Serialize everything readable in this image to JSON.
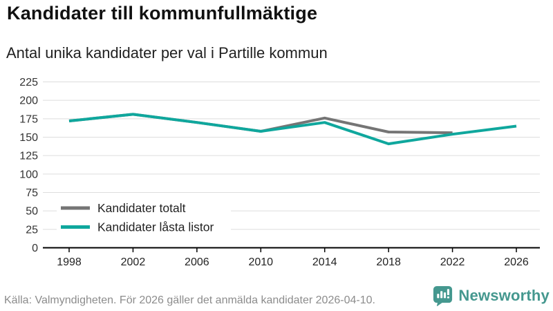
{
  "header": {
    "title": "Kandidater till kommunfullmäktige",
    "subtitle": "Antal unika kandidater per val i Partille kommun"
  },
  "chart_data": {
    "type": "line",
    "x": [
      1998,
      2002,
      2006,
      2010,
      2014,
      2018,
      2022,
      2026
    ],
    "series": [
      {
        "name": "Kandidater totalt",
        "color": "#757575",
        "values": [
          172,
          181,
          170,
          158,
          176,
          157,
          156,
          null
        ]
      },
      {
        "name": "Kandidater låsta listor",
        "color": "#0FA79D",
        "values": [
          172,
          181,
          170,
          158,
          170,
          141,
          154,
          165
        ]
      }
    ],
    "ylim": [
      0,
      225
    ],
    "ytick_step": 25,
    "grid": true,
    "gridline_color": "#dddddd",
    "axis_color": "#000000",
    "tick_label_color": "#333333",
    "legend_position": "inside-bottom-left"
  },
  "footer": {
    "source": "Källa: Valmyndigheten. För 2026 gäller det anmälda kandidater 2026-04-10."
  },
  "logo": {
    "text": "Newsworthy",
    "color": "#45988F",
    "icon": "bar-chart-speech-bubble-icon"
  }
}
